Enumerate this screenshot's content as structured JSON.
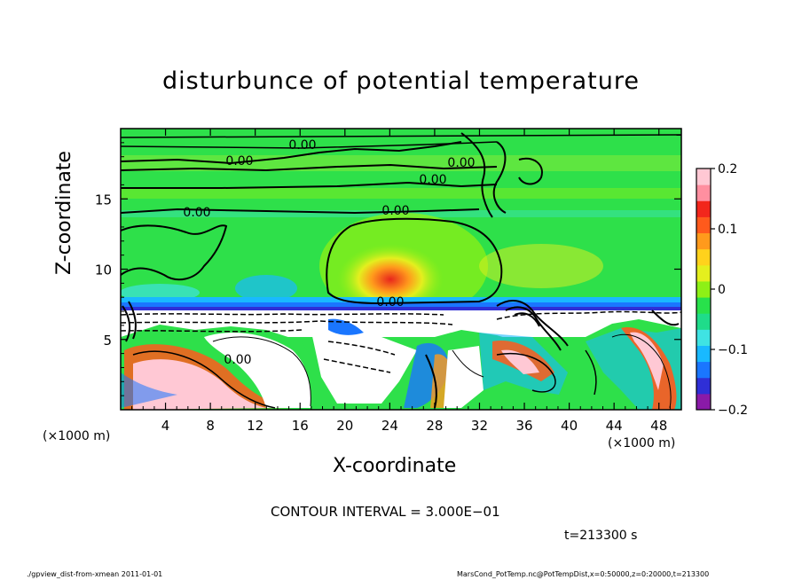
{
  "chart_data": {
    "type": "heatmap",
    "title": "disturbunce of potential temperature",
    "xlabel": "X-coordinate",
    "ylabel": "Z-coordinate",
    "x_unit": "(×1000 m)",
    "z_unit": "(×1000 m)",
    "xlim": [
      0,
      50
    ],
    "zlim": [
      0,
      20
    ],
    "x_ticks": [
      4,
      8,
      12,
      16,
      20,
      24,
      28,
      32,
      36,
      40,
      44,
      48
    ],
    "z_ticks": [
      5,
      10,
      15
    ],
    "colorbar": {
      "range": [
        -0.2,
        0.2
      ],
      "ticks": [
        {
          "value": 0.2,
          "label": "0.2"
        },
        {
          "value": 0.1,
          "label": "0.1"
        },
        {
          "value": 0,
          "label": "0"
        },
        {
          "value": -0.1,
          "label": "−0.1"
        },
        {
          "value": -0.2,
          "label": "−0.2"
        }
      ],
      "colors": [
        "#8a1aa8",
        "#2f2fd6",
        "#1a76ff",
        "#19b9ff",
        "#3fe3e3",
        "#1fdc8a",
        "#28e14b",
        "#8ef016",
        "#e4ef1e",
        "#ffd21c",
        "#ff9a1c",
        "#ff5a1c",
        "#f2261c",
        "#ff8fa0",
        "#ffc8d4"
      ]
    },
    "contour_labels": [
      "0.00",
      "0.00",
      "0.00",
      "0.00",
      "0.00",
      "0.00",
      "0.00",
      "0.00"
    ],
    "contour_interval": "CONTOUR INTERVAL = 3.000E−01",
    "time": "t=213300 s",
    "footer_left": "./gpview_dist-from-xmean  2011-01-01",
    "footer_right": "MarsCond_PotTemp.nc@PotTempDist,x=0:50000,z=0:20000,t=213300"
  }
}
